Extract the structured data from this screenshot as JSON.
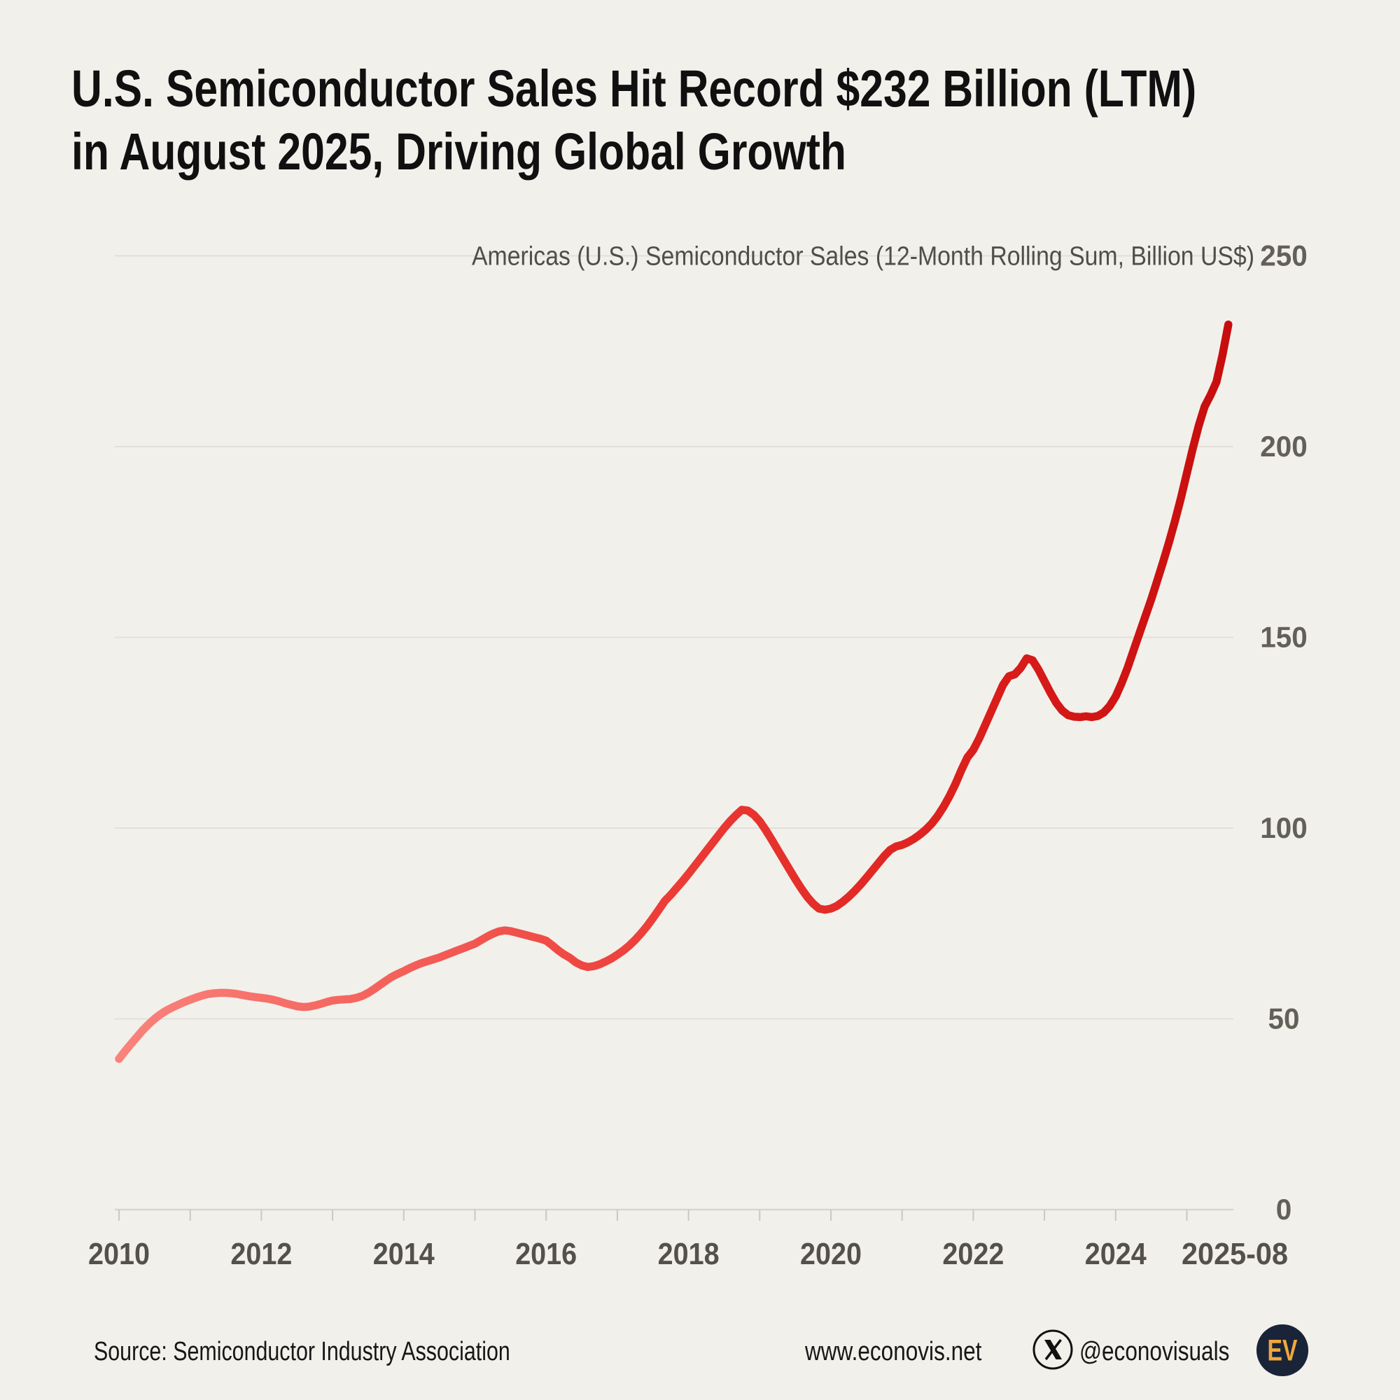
{
  "page": {
    "background": "#F2F0EB",
    "title_line1": "U.S. Semiconductor Sales Hit Record $232 Billion (LTM)",
    "title_line2": "in August 2025, Driving Global Growth"
  },
  "chart_data": {
    "type": "line",
    "title": "U.S. Semiconductor Sales Hit Record $232 Billion (LTM) in August 2025, Driving Global Growth",
    "series_label": "Americas (U.S.) Semiconductor Sales (12-Month Rolling Sum, Billion US$)",
    "unit": "Billion US$",
    "frequency": "monthly",
    "x_start": "2010-01",
    "x_end": "2025-08",
    "ylim": [
      0,
      250
    ],
    "y_ticks": [
      0,
      50,
      100,
      150,
      200,
      250
    ],
    "x_tick_years": [
      2010,
      2012,
      2014,
      2016,
      2018,
      2020,
      2022,
      2024
    ],
    "x_last_tick_label": "2025-08",
    "grid": "horizontal",
    "legend_position": "top-right",
    "line_gradient": [
      "#F9837C",
      "#F4605A",
      "#EC3B36",
      "#DC201D",
      "#C70D0D"
    ],
    "latest_value": 232,
    "values": [
      39.5,
      41.5,
      43.4,
      45.2,
      47.0,
      48.6,
      50.0,
      51.2,
      52.2,
      53.0,
      53.7,
      54.4,
      55.0,
      55.6,
      56.1,
      56.5,
      56.7,
      56.8,
      56.8,
      56.7,
      56.5,
      56.2,
      55.9,
      55.7,
      55.5,
      55.3,
      55.0,
      54.6,
      54.1,
      53.7,
      53.3,
      53.1,
      53.2,
      53.5,
      53.9,
      54.4,
      54.8,
      55.0,
      55.1,
      55.2,
      55.5,
      56.0,
      56.8,
      57.8,
      58.9,
      60.0,
      61.0,
      61.8,
      62.5,
      63.3,
      64.0,
      64.6,
      65.1,
      65.6,
      66.1,
      66.7,
      67.3,
      67.9,
      68.5,
      69.1,
      69.7,
      70.6,
      71.5,
      72.3,
      72.9,
      73.2,
      73.0,
      72.6,
      72.2,
      71.8,
      71.4,
      71.0,
      70.5,
      69.3,
      68.0,
      66.9,
      66.0,
      64.8,
      64.0,
      63.6,
      63.8,
      64.3,
      65.0,
      65.8,
      66.8,
      67.9,
      69.2,
      70.7,
      72.4,
      74.3,
      76.4,
      78.6,
      80.9,
      82.5,
      84.3,
      86.1,
      88.0,
      90.0,
      92.0,
      94.0,
      96.0,
      98.0,
      100.0,
      101.8,
      103.4,
      104.8,
      104.6,
      103.5,
      101.8,
      99.5,
      97.0,
      94.4,
      91.8,
      89.2,
      86.6,
      84.2,
      82.0,
      80.2,
      78.9,
      78.6,
      78.9,
      79.6,
      80.7,
      82.0,
      83.5,
      85.2,
      87.0,
      88.9,
      90.8,
      92.7,
      94.3,
      95.2,
      95.6,
      96.3,
      97.2,
      98.3,
      99.6,
      101.2,
      103.2,
      105.6,
      108.4,
      111.6,
      115.2,
      118.5,
      120.5,
      123.5,
      127.0,
      130.5,
      134.0,
      137.5,
      139.8,
      140.3,
      142.0,
      144.5,
      144.0,
      141.5,
      138.5,
      135.5,
      132.8,
      130.8,
      129.6,
      129.2,
      129.1,
      129.3,
      129.1,
      129.4,
      130.3,
      132.0,
      134.5,
      138.0,
      142.0,
      146.5,
      151.0,
      155.5,
      160.0,
      164.8,
      169.8,
      175.0,
      180.5,
      186.5,
      193.0,
      199.5,
      205.5,
      210.5,
      213.5,
      217.0,
      224.0,
      232.0
    ],
    "colors": {
      "gridline": "#E3E0DA",
      "axis_line": "#D9D6CF",
      "tick": "#CBC8C1",
      "axis_label": "#636058",
      "x_label": "#54514B",
      "series_label": "#504E49"
    }
  },
  "footer": {
    "source": "Source: Semiconductor Industry Association",
    "website": "www.econovis.net",
    "x_glyph": "X",
    "x_handle": "@econovisuals",
    "logo": {
      "text": "EV",
      "bg": "#1A2438",
      "fg": "#F0A73C"
    }
  }
}
